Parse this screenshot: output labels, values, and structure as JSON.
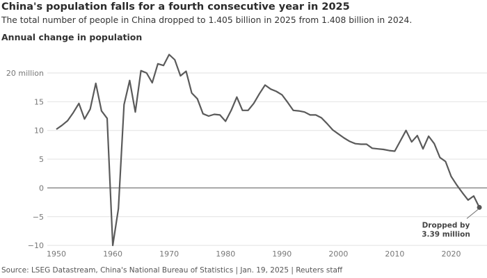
{
  "chart_data": {
    "type": "line",
    "title": "China's population falls for a fourth consecutive year in 2025",
    "subtitle": "The total number of people in China dropped to 1.405 billion in 2025 from 1.408 billion in 2024.",
    "ylabel": "Annual change in population",
    "xlabel": "",
    "source": "Source: LSEG Datastream, China's National Bureau of Statistics | Jan. 19, 2025  | Reuters staff",
    "xlim": [
      1950,
      2025
    ],
    "ylim": [
      -10,
      23.5
    ],
    "x_ticks": [
      1950,
      1960,
      1970,
      1980,
      1990,
      2000,
      2010,
      2020
    ],
    "y_ticks": [
      {
        "value": -10,
        "label": "−10"
      },
      {
        "value": -5,
        "label": "−5"
      },
      {
        "value": 0,
        "label": "0"
      },
      {
        "value": 5,
        "label": "5"
      },
      {
        "value": 10,
        "label": "10"
      },
      {
        "value": 15,
        "label": "15"
      },
      {
        "value": 20,
        "label": "20 million"
      }
    ],
    "grid": true,
    "line_color": "#5a5a5a",
    "x": [
      1950,
      1951,
      1952,
      1953,
      1954,
      1955,
      1956,
      1957,
      1958,
      1959,
      1960,
      1961,
      1962,
      1963,
      1964,
      1965,
      1966,
      1967,
      1968,
      1969,
      1970,
      1971,
      1972,
      1973,
      1974,
      1975,
      1976,
      1977,
      1978,
      1979,
      1980,
      1981,
      1982,
      1983,
      1984,
      1985,
      1986,
      1987,
      1988,
      1989,
      1990,
      1991,
      1992,
      1993,
      1994,
      1995,
      1996,
      1997,
      1998,
      1999,
      2000,
      2001,
      2002,
      2003,
      2004,
      2005,
      2006,
      2007,
      2008,
      2009,
      2010,
      2011,
      2012,
      2013,
      2014,
      2015,
      2016,
      2017,
      2018,
      2019,
      2020,
      2021,
      2022,
      2023,
      2024,
      2025
    ],
    "values": [
      10.2,
      10.9,
      11.7,
      13.1,
      14.7,
      12.0,
      13.7,
      18.2,
      13.4,
      12.1,
      -10.0,
      -3.6,
      14.5,
      18.7,
      13.2,
      20.4,
      20.0,
      18.3,
      21.6,
      21.3,
      23.2,
      22.3,
      19.5,
      20.3,
      16.5,
      15.5,
      12.9,
      12.5,
      12.8,
      12.7,
      11.6,
      13.5,
      15.8,
      13.5,
      13.5,
      14.7,
      16.4,
      17.9,
      17.2,
      16.8,
      16.2,
      14.9,
      13.5,
      13.4,
      13.2,
      12.7,
      12.7,
      12.2,
      11.2,
      10.1,
      9.4,
      8.7,
      8.1,
      7.7,
      7.6,
      7.6,
      6.9,
      6.8,
      6.7,
      6.5,
      6.4,
      8.2,
      10.0,
      8.0,
      9.1,
      6.8,
      9.0,
      7.7,
      5.3,
      4.6,
      2.0,
      0.5,
      -0.85,
      -2.1,
      -1.4,
      -3.39
    ],
    "annotation": {
      "x": 2025,
      "y": -3.39,
      "lines": [
        "Dropped by",
        "3.39 million"
      ]
    }
  }
}
